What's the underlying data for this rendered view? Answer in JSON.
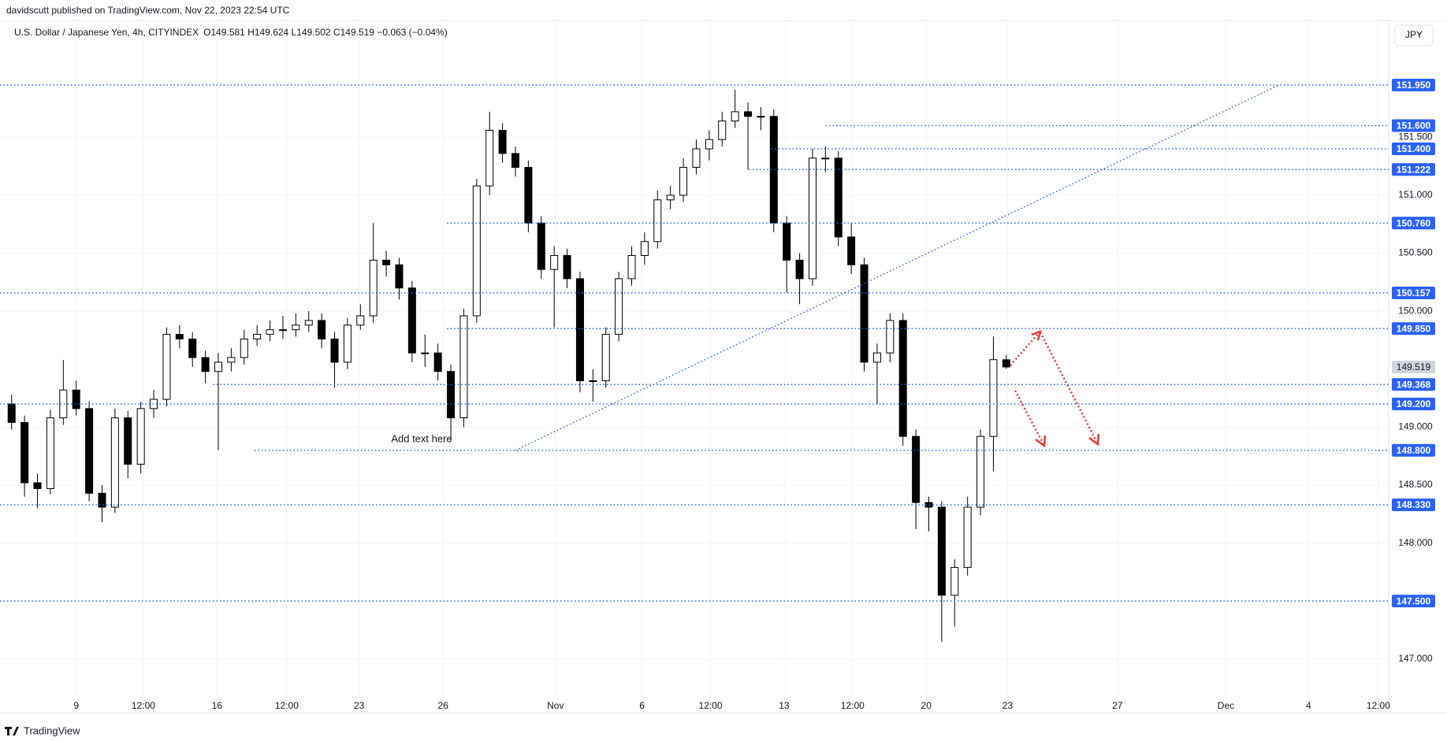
{
  "header": {
    "published": "davidscutt published on TradingView.com, Nov 22, 2023 22:54 UTC",
    "symbol": "U.S. Dollar / Japanese Yen, 4h, CITYINDEX",
    "ohlc": "O149.581 H149.624 L149.502 C149.519 −0.063 (−0.04%)",
    "currency": "JPY"
  },
  "footer": {
    "logo": "TradingView"
  },
  "chart_data": {
    "type": "candlestick",
    "up_color": "#ffffff",
    "down_color": "#000000",
    "border_color": "#000000",
    "level_color": "#2962ff",
    "open": [
      149.2,
      149.04,
      148.52,
      148.47,
      149.08,
      149.32,
      149.16,
      148.43,
      148.31,
      149.08,
      148.68,
      149.16,
      149.24,
      149.8,
      149.76,
      149.6,
      149.48,
      149.56,
      149.6,
      149.76,
      149.8,
      149.84,
      149.84,
      149.88,
      149.92,
      149.76,
      149.56,
      149.88,
      149.96,
      150.44,
      150.4,
      150.2,
      149.64,
      149.64,
      149.48,
      149.08,
      149.96,
      151.08,
      151.56,
      151.36,
      151.24,
      150.76,
      150.36,
      150.48,
      150.28,
      149.4,
      149.4,
      149.8,
      150.28,
      150.48,
      150.6,
      150.96,
      151.0,
      151.24,
      151.4,
      151.48,
      151.64,
      151.72,
      151.68,
      151.68,
      150.76,
      150.44,
      150.28,
      151.32,
      151.32,
      150.64,
      150.4,
      149.56,
      149.64,
      149.92,
      148.92,
      148.35,
      148.31,
      147.55,
      147.79,
      148.31,
      148.92,
      149.581
    ],
    "high": [
      149.28,
      149.1,
      148.6,
      149.15,
      149.58,
      149.4,
      149.22,
      148.5,
      149.16,
      149.14,
      149.22,
      149.32,
      149.86,
      149.88,
      149.82,
      149.66,
      149.64,
      149.68,
      149.84,
      149.88,
      149.92,
      149.96,
      149.98,
      150.0,
      149.98,
      149.82,
      149.94,
      150.06,
      150.76,
      150.52,
      150.46,
      150.26,
      149.8,
      149.72,
      149.54,
      150.02,
      151.14,
      151.72,
      151.62,
      151.42,
      151.3,
      150.82,
      150.56,
      150.54,
      150.34,
      149.5,
      149.86,
      150.34,
      150.56,
      150.68,
      151.04,
      151.08,
      151.32,
      151.48,
      151.56,
      151.72,
      151.91,
      151.8,
      151.76,
      151.74,
      150.82,
      150.5,
      151.4,
      151.42,
      151.38,
      150.76,
      150.46,
      149.72,
      149.98,
      149.98,
      148.98,
      148.4,
      148.36,
      147.86,
      148.4,
      148.98,
      149.78,
      149.624
    ],
    "low": [
      148.98,
      148.4,
      148.3,
      148.42,
      149.02,
      149.1,
      148.36,
      148.18,
      148.26,
      148.56,
      148.6,
      149.08,
      149.18,
      149.68,
      149.52,
      149.38,
      148.8,
      149.48,
      149.54,
      149.7,
      149.74,
      149.76,
      149.78,
      149.82,
      149.68,
      149.34,
      149.5,
      149.84,
      149.9,
      150.3,
      150.1,
      149.56,
      149.52,
      149.4,
      148.88,
      149.0,
      149.9,
      151.0,
      151.28,
      151.16,
      150.68,
      150.28,
      149.86,
      150.2,
      149.3,
      149.22,
      149.34,
      149.74,
      150.22,
      150.4,
      150.54,
      150.88,
      150.94,
      151.18,
      151.3,
      151.42,
      151.58,
      151.22,
      151.56,
      150.68,
      150.16,
      150.06,
      150.22,
      151.2,
      150.56,
      150.32,
      149.48,
      149.2,
      149.56,
      148.84,
      148.12,
      148.1,
      147.15,
      147.28,
      147.72,
      148.24,
      148.62,
      149.502
    ],
    "close": [
      149.04,
      148.52,
      148.47,
      149.08,
      149.32,
      149.16,
      148.43,
      148.31,
      149.08,
      148.68,
      149.16,
      149.24,
      149.8,
      149.76,
      149.6,
      149.48,
      149.56,
      149.6,
      149.76,
      149.8,
      149.84,
      149.84,
      149.88,
      149.92,
      149.76,
      149.56,
      149.88,
      149.96,
      150.44,
      150.4,
      150.2,
      149.64,
      149.64,
      149.48,
      149.08,
      149.96,
      151.08,
      151.56,
      151.36,
      151.24,
      150.76,
      150.36,
      150.48,
      150.28,
      149.4,
      149.4,
      149.8,
      150.28,
      150.48,
      150.6,
      150.96,
      151.0,
      151.24,
      151.4,
      151.48,
      151.64,
      151.72,
      151.68,
      151.68,
      150.76,
      150.44,
      150.28,
      151.32,
      151.32,
      150.64,
      150.4,
      149.56,
      149.64,
      149.92,
      148.92,
      148.35,
      148.31,
      147.55,
      147.79,
      148.31,
      148.92,
      149.582,
      149.519
    ],
    "xlim": [
      -0.9,
      106.6
    ],
    "xticks": [
      {
        "value": 5.0,
        "label": "9"
      },
      {
        "value": 10.2,
        "label": "12:00"
      },
      {
        "value": 15.9,
        "label": "16"
      },
      {
        "value": 21.3,
        "label": "12:00"
      },
      {
        "value": 26.9,
        "label": "23"
      },
      {
        "value": 33.4,
        "label": "26"
      },
      {
        "value": 42.1,
        "label": "Nov"
      },
      {
        "value": 48.8,
        "label": "6"
      },
      {
        "value": 54.1,
        "label": "12:00"
      },
      {
        "value": 59.8,
        "label": "13"
      },
      {
        "value": 65.1,
        "label": "12:00"
      },
      {
        "value": 70.8,
        "label": "20"
      },
      {
        "value": 77.1,
        "label": "23"
      },
      {
        "value": 85.6,
        "label": "27"
      },
      {
        "value": 94.0,
        "label": "Dec"
      },
      {
        "value": 100.4,
        "label": "4"
      },
      {
        "value": 105.8,
        "label": "12:00"
      }
    ],
    "ylim": [
      146.687,
      152.507
    ],
    "yticks": [
      {
        "value": 147,
        "label": "147.000"
      },
      {
        "value": 148,
        "label": "148.000"
      },
      {
        "value": 148.5,
        "label": "148.500"
      },
      {
        "value": 149,
        "label": "149.000"
      },
      {
        "value": 150,
        "label": "150.000"
      },
      {
        "value": 150.5,
        "label": "150.500"
      },
      {
        "value": 151,
        "label": "151.000"
      },
      {
        "value": 151.5,
        "label": "151.500"
      }
    ],
    "grid": true,
    "levels": [
      {
        "value": 151.95,
        "label": "151.950",
        "from": -0.9
      },
      {
        "value": 151.6,
        "label": "151.600",
        "from": 63.0
      },
      {
        "value": 151.4,
        "label": "151.400",
        "from": 58.8
      },
      {
        "value": 151.222,
        "label": "151.222",
        "from": 57.1
      },
      {
        "value": 150.76,
        "label": "150.760",
        "from": 33.7
      },
      {
        "value": 150.157,
        "label": "150.157",
        "from": -0.9
      },
      {
        "value": 149.85,
        "label": "149.850",
        "from": 33.7
      },
      {
        "value": 149.368,
        "label": "149.368",
        "from": 15.6
      },
      {
        "value": 149.2,
        "label": "149.200",
        "from": -0.9
      },
      {
        "value": 148.8,
        "label": "148.800",
        "from": 18.8
      },
      {
        "value": 148.33,
        "label": "148.330",
        "from": -0.9
      },
      {
        "value": 147.5,
        "label": "147.500",
        "from": -0.9
      }
    ],
    "last_price": {
      "value": 149.519,
      "label": "149.519"
    },
    "trendline": {
      "x": [
        39.0,
        98.1
      ],
      "y": [
        148.8,
        151.95
      ]
    },
    "annotation": "Add text here"
  }
}
